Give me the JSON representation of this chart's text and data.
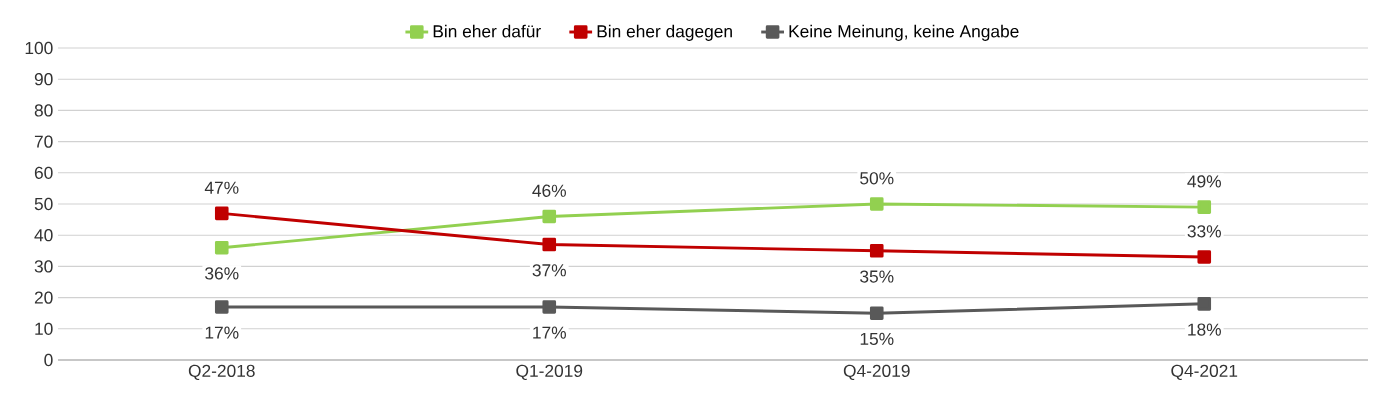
{
  "chart_data": {
    "type": "line",
    "categories": [
      "Q2-2018",
      "Q1-2019",
      "Q4-2019",
      "Q4-2021"
    ],
    "series": [
      {
        "name": "Bin eher dafür",
        "color": "#92d050",
        "values": [
          36,
          46,
          50,
          49
        ],
        "value_labels": [
          "36%",
          "46%",
          "50%",
          "49%"
        ]
      },
      {
        "name": "Bin eher dagegen",
        "color": "#c00000",
        "values": [
          47,
          37,
          35,
          33
        ],
        "value_labels": [
          "47%",
          "37%",
          "35%",
          "33%"
        ]
      },
      {
        "name": "Keine Meinung, keine Angabe",
        "color": "#595959",
        "values": [
          17,
          17,
          15,
          18
        ],
        "value_labels": [
          "17%",
          "17%",
          "15%",
          "18%"
        ]
      }
    ],
    "ylim": [
      0,
      100
    ],
    "yticks": [
      0,
      10,
      20,
      30,
      40,
      50,
      60,
      70,
      80,
      90,
      100
    ],
    "grid": "y",
    "legend": "top",
    "marker": "square",
    "line_style": "solid"
  }
}
